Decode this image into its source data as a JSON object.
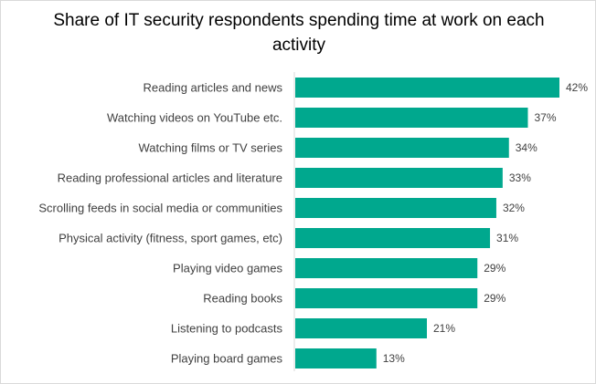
{
  "chart_data": {
    "type": "bar",
    "orientation": "horizontal",
    "title": "Share of IT security respondents spending time at work on each activity",
    "categories": [
      "Reading articles and news",
      "Watching videos on YouTube etc.",
      "Watching films or TV series",
      "Reading professional articles and literature",
      "Scrolling feeds in social media or communities",
      "Physical activity (fitness, sport games, etc)",
      "Playing video games",
      "Reading books",
      "Listening to podcasts",
      "Playing board games"
    ],
    "values": [
      42,
      37,
      34,
      33,
      32,
      31,
      29,
      29,
      21,
      13
    ],
    "value_labels": [
      "42%",
      "37%",
      "34%",
      "33%",
      "32%",
      "31%",
      "29%",
      "29%",
      "21%",
      "13%"
    ],
    "value_unit": "%",
    "xlim": [
      0,
      42
    ],
    "grid": false,
    "bar_color": "#00a88e",
    "axis_color": "#d9d9d9"
  }
}
